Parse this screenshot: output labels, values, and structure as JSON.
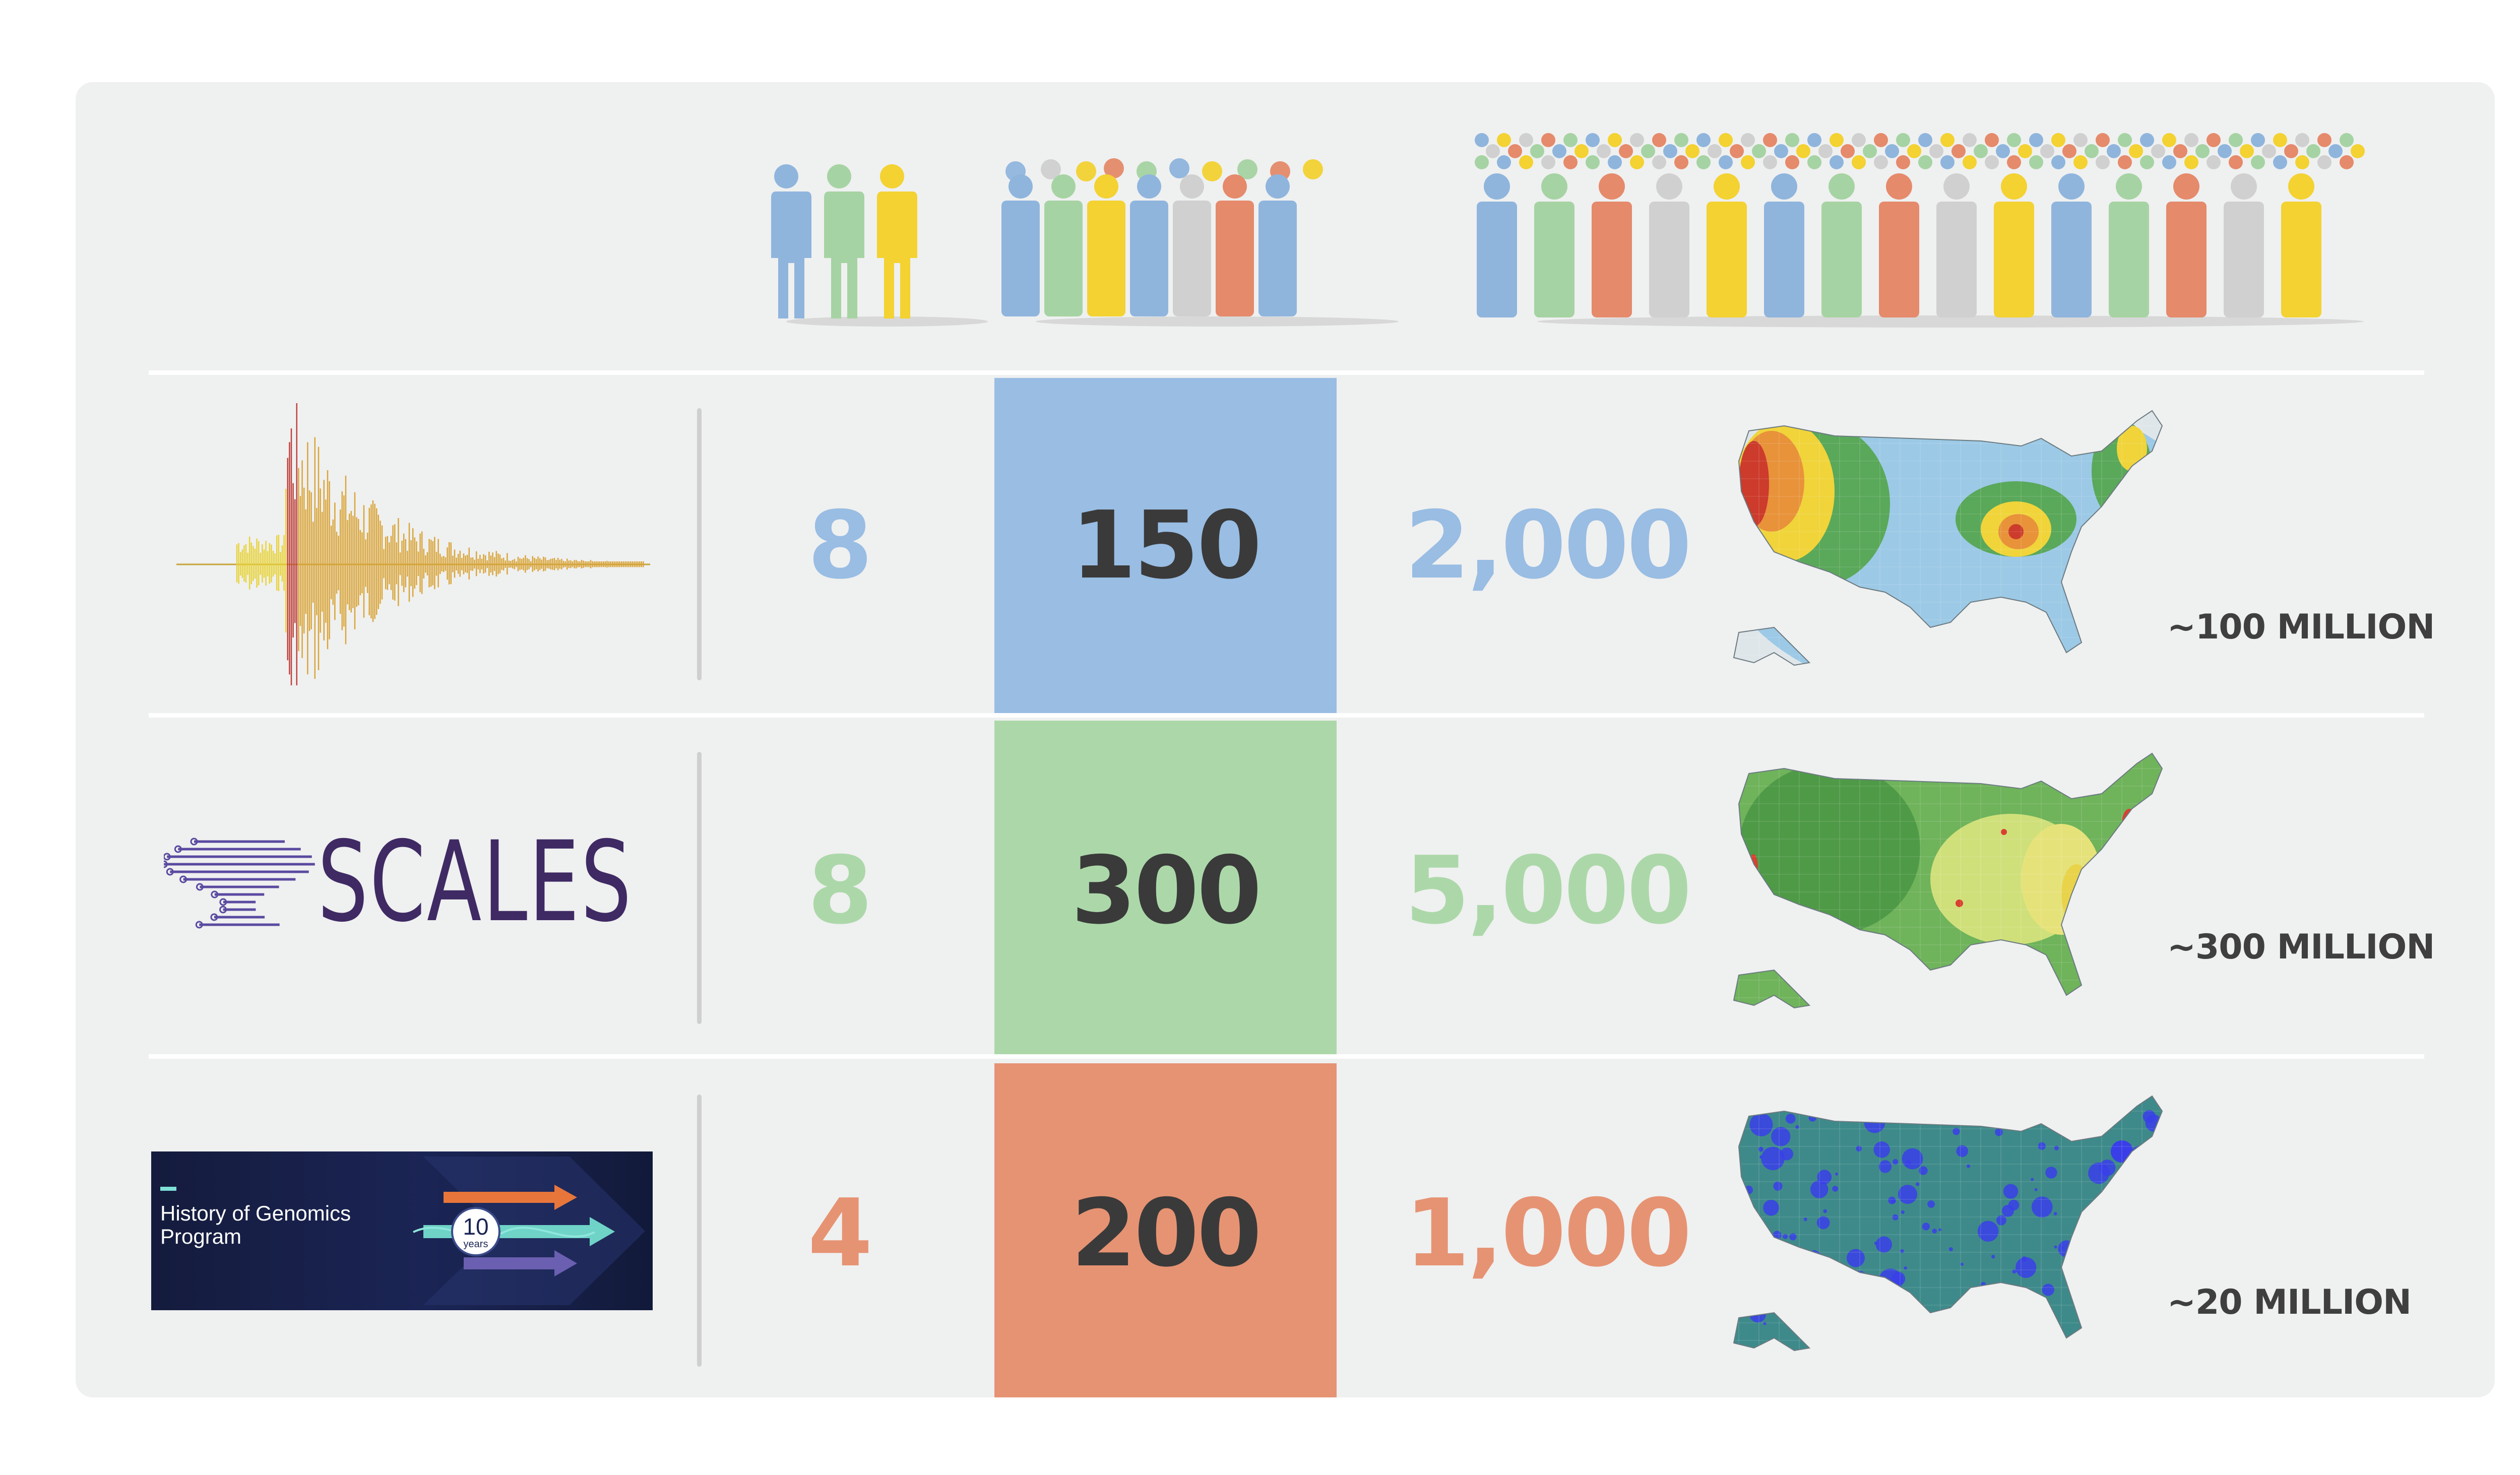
{
  "colors": {
    "blue": "#99bde3",
    "green": "#acd8a9",
    "orange": "#e69373",
    "dark_number": "#3a3a3a",
    "panel_bg": "#eff0f0"
  },
  "header": {
    "groups": [
      {
        "people_icon": "small-group-people-icon"
      },
      {
        "people_icon": "medium-group-people-icon"
      },
      {
        "people_icon": "large-crowd-people-icon"
      }
    ]
  },
  "rows": [
    {
      "source_icon": "seismogram-waveform-icon",
      "small_count": "8",
      "medium_count": "150",
      "large_count": "2,000",
      "map_icon": "us-seismic-hazard-map",
      "population_label": "~100 MILLION"
    },
    {
      "source_icon": "scales-logo",
      "logo_text": "SCALES",
      "small_count": "8",
      "medium_count": "300",
      "large_count": "5,000",
      "map_icon": "us-population-density-map",
      "population_label": "~300 MILLION"
    },
    {
      "source_icon": "history-of-genomics-banner",
      "banner_title": "History of Genomics Program",
      "banner_badge_number": "10",
      "banner_badge_text": "years",
      "small_count": "4",
      "medium_count": "200",
      "large_count": "1,000",
      "map_icon": "us-county-bubble-map",
      "population_label": "~20 MILLION"
    }
  ]
}
